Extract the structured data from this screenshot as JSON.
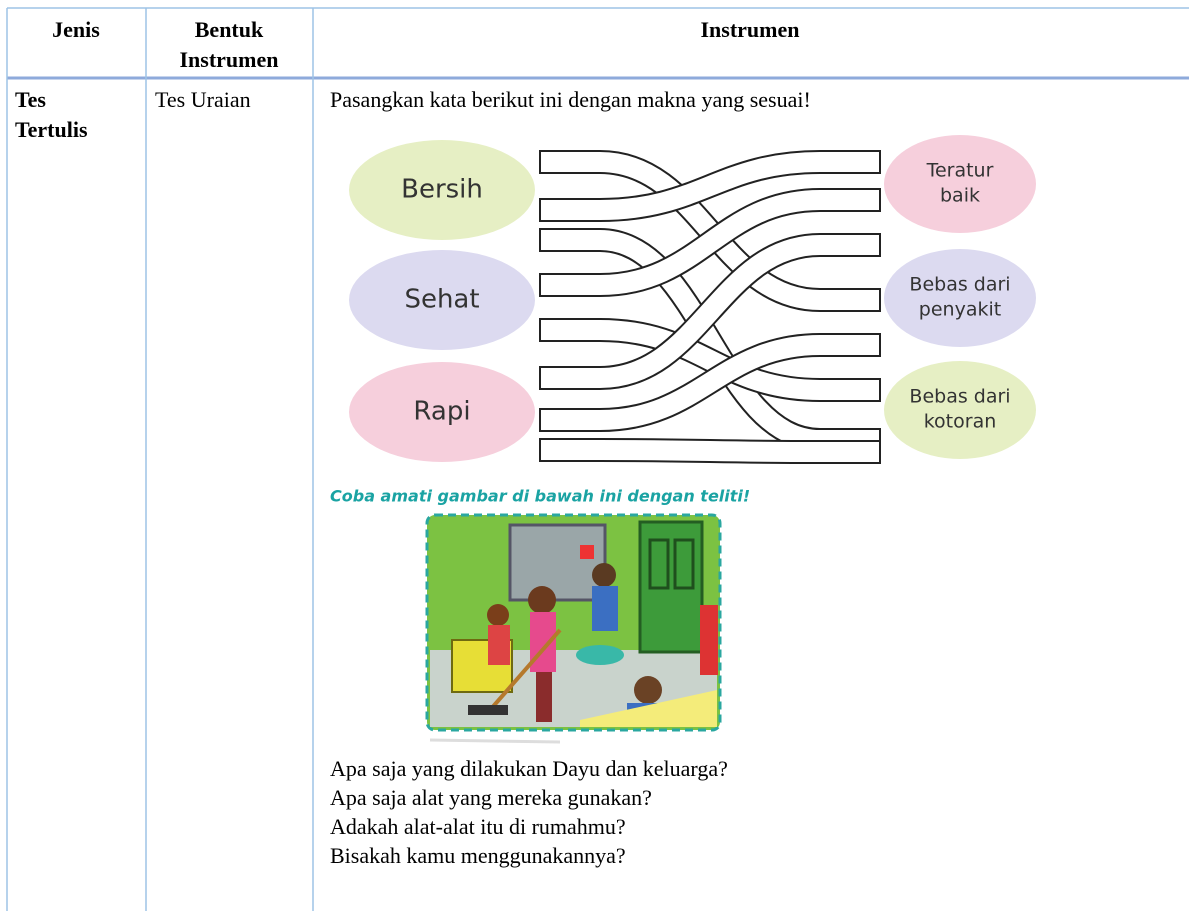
{
  "table": {
    "header": [
      "Jenis",
      [
        "Bentuk",
        "Instrumen"
      ],
      "Instrumen"
    ],
    "rows": [
      [
        [
          "Tes",
          "Tertulis"
        ],
        "Tes Uraian",
        {
          "instruction": "Pasangkan kata berikut ini dengan makna yang sesuai!",
          "matching": {
            "left": [
              "Bersih",
              "Sehat",
              "Rapi"
            ],
            "right": [
              [
                "Teratur",
                "baik"
              ],
              [
                "Bebas dari",
                "penyakit"
              ],
              [
                "Bebas dari",
                "kotoran"
              ]
            ]
          },
          "caption": "Coba amati gambar di bawah ini dengan teliti!",
          "questions": [
            "Apa saja yang dilakukan Dayu dan keluarga?",
            "Apa saja alat yang mereka gunakan?",
            "Adakah alat-alat itu di rumahmu?",
            "Bisakah kamu menggunakannya?"
          ]
        }
      ]
    ]
  }
}
